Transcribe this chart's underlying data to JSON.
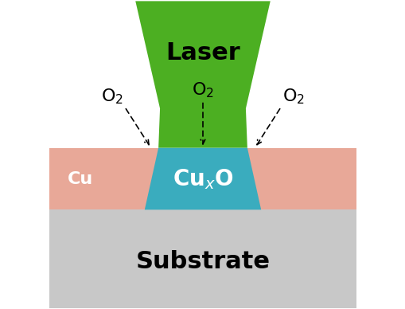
{
  "fig_width": 5.1,
  "fig_height": 3.88,
  "dpi": 100,
  "bg_color": "#ffffff",
  "substrate_color": "#c8c8c8",
  "cu_layer_color": "#e8a898",
  "cuxo_color": "#3aacbe",
  "laser_color": "#4caf22",
  "laser_label": "Laser",
  "cu_label": "Cu",
  "cuxo_label": "Cu$_x$O",
  "substrate_label": "Substrate",
  "o2_label": "O$_2$",
  "laser_fontsize": 22,
  "cu_fontsize": 16,
  "cuxo_fontsize": 20,
  "substrate_fontsize": 22,
  "o2_fontsize": 16
}
